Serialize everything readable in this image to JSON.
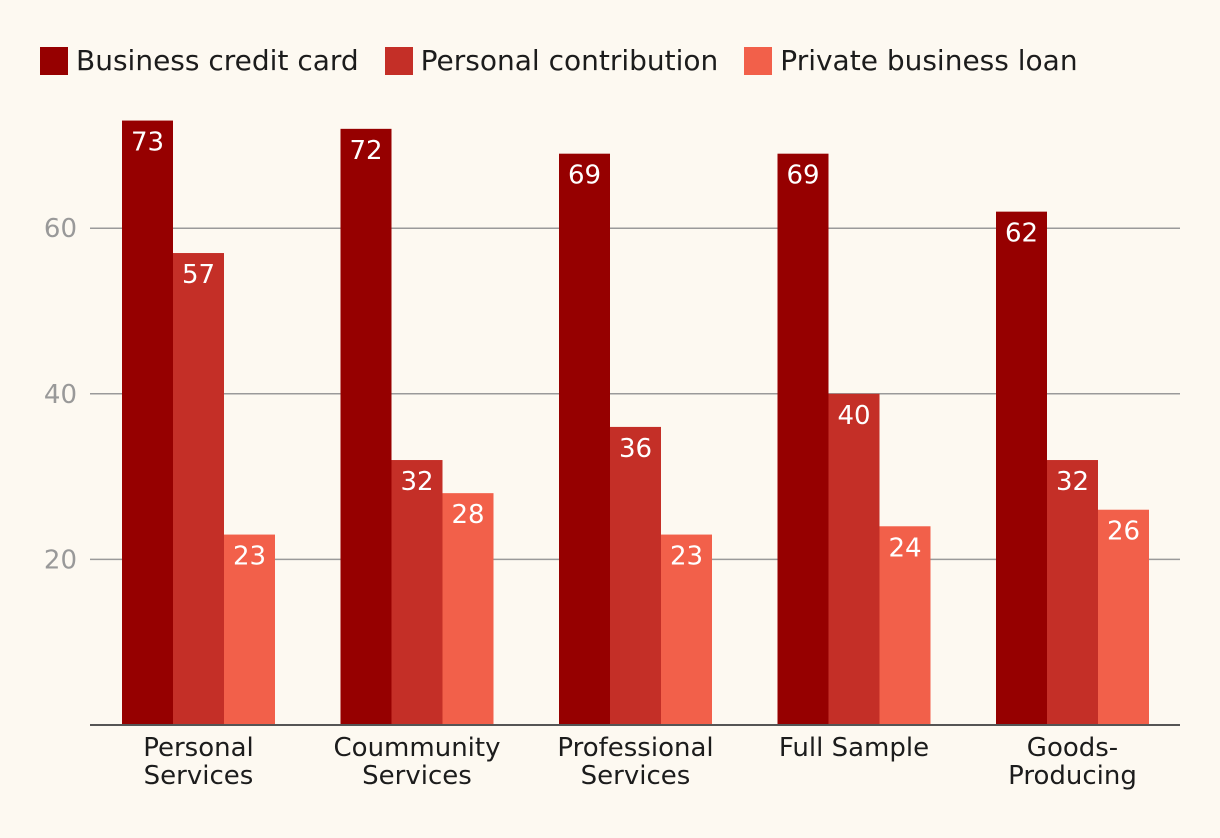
{
  "chart_data": {
    "type": "bar",
    "title": "",
    "xlabel": "",
    "ylabel": "",
    "ylim": [
      0,
      75
    ],
    "yticks": [
      20,
      40,
      60
    ],
    "grid": true,
    "legend_position": "top-left",
    "categories": [
      [
        "Personal",
        "Services"
      ],
      [
        "Coummunity",
        "Services"
      ],
      [
        "Professional",
        "Services"
      ],
      [
        "Full Sample"
      ],
      [
        "Goods-",
        "Producing"
      ]
    ],
    "series": [
      {
        "name": "Business credit card",
        "color": "#960000",
        "values": [
          73,
          72,
          69,
          69,
          62
        ]
      },
      {
        "name": "Personal contribution",
        "color": "#c42f27",
        "values": [
          57,
          32,
          36,
          40,
          32
        ]
      },
      {
        "name": "Private business loan",
        "color": "#f2604a",
        "values": [
          23,
          28,
          23,
          24,
          26
        ]
      }
    ]
  }
}
